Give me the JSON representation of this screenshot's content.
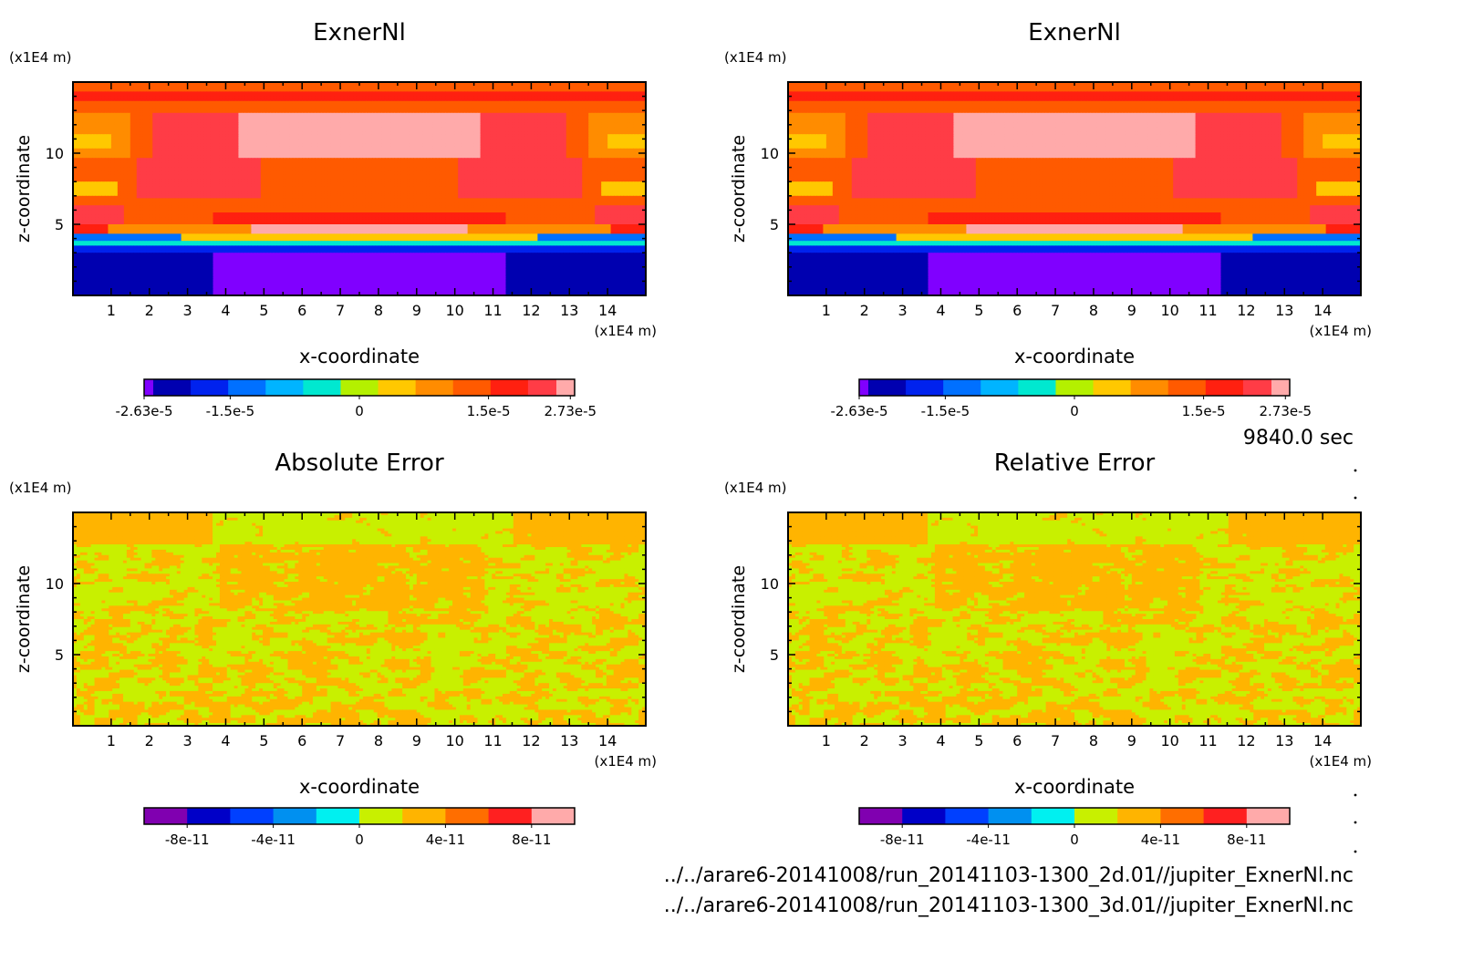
{
  "time_label": "9840.0 sec",
  "files": [
    "../../arare6-20141008/run_20141103-1300_2d.01//jupiter_ExnerNl.nc",
    "../../arare6-20141008/run_20141103-1300_3d.01//jupiter_ExnerNl.nc"
  ],
  "chart_data": [
    {
      "type": "heatmap",
      "title": "ExnerNl",
      "xlabel": "x-coordinate",
      "ylabel": "z-coordinate",
      "x_unit": "(x1E4 m)",
      "y_unit": "(x1E4 m)",
      "xlim": [
        0,
        15
      ],
      "ylim": [
        0,
        15
      ],
      "x_ticks": [
        1,
        2,
        3,
        4,
        5,
        6,
        7,
        8,
        9,
        10,
        11,
        12,
        13,
        14
      ],
      "y_ticks": [
        5,
        10
      ],
      "colorbar": {
        "colors": [
          "#8000ff",
          "#0000b0",
          "#0022ee",
          "#0070ff",
          "#00b4ff",
          "#00e8d0",
          "#b4f000",
          "#ffc800",
          "#ff8c00",
          "#ff5a00",
          "#ff2010",
          "#ff3c46",
          "#ffaaaa"
        ],
        "tick_labels": [
          "-2.63e-5",
          "-1.5e-5",
          "0",
          "1.5e-5",
          "2.73e-5"
        ],
        "vmin": -2.63e-05,
        "vmax": 2.73e-05
      }
    },
    {
      "type": "heatmap",
      "title": "ExnerNl",
      "xlabel": "x-coordinate",
      "ylabel": "z-coordinate",
      "x_unit": "(x1E4 m)",
      "y_unit": "(x1E4 m)",
      "xlim": [
        0,
        15
      ],
      "ylim": [
        0,
        15
      ],
      "x_ticks": [
        1,
        2,
        3,
        4,
        5,
        6,
        7,
        8,
        9,
        10,
        11,
        12,
        13,
        14
      ],
      "y_ticks": [
        5,
        10
      ],
      "colorbar": {
        "colors": [
          "#8000ff",
          "#0000b0",
          "#0022ee",
          "#0070ff",
          "#00b4ff",
          "#00e8d0",
          "#b4f000",
          "#ffc800",
          "#ff8c00",
          "#ff5a00",
          "#ff2010",
          "#ff3c46",
          "#ffaaaa"
        ],
        "tick_labels": [
          "-2.63e-5",
          "-1.5e-5",
          "0",
          "1.5e-5",
          "2.73e-5"
        ],
        "vmin": -2.63e-05,
        "vmax": 2.73e-05
      }
    },
    {
      "type": "heatmap",
      "title": "Absolute Error",
      "xlabel": "x-coordinate",
      "ylabel": "z-coordinate",
      "x_unit": "(x1E4 m)",
      "y_unit": "(x1E4 m)",
      "xlim": [
        0,
        15
      ],
      "ylim": [
        0,
        15
      ],
      "x_ticks": [
        1,
        2,
        3,
        4,
        5,
        6,
        7,
        8,
        9,
        10,
        11,
        12,
        13,
        14
      ],
      "y_ticks": [
        5,
        10
      ],
      "colorbar": {
        "colors": [
          "#8000b0",
          "#0000c8",
          "#0040ff",
          "#0090f0",
          "#00f0f0",
          "#c8f000",
          "#ffb400",
          "#ff6e00",
          "#ff2020",
          "#ffaaaa"
        ],
        "tick_labels": [
          "-8e-11",
          "-4e-11",
          "0",
          "4e-11",
          "8e-11"
        ],
        "vmin": -1e-10,
        "vmax": 1e-10
      }
    },
    {
      "type": "heatmap",
      "title": "Relative Error",
      "xlabel": "x-coordinate",
      "ylabel": "z-coordinate",
      "x_unit": "(x1E4 m)",
      "y_unit": "(x1E4 m)",
      "xlim": [
        0,
        15
      ],
      "ylim": [
        0,
        15
      ],
      "x_ticks": [
        1,
        2,
        3,
        4,
        5,
        6,
        7,
        8,
        9,
        10,
        11,
        12,
        13,
        14
      ],
      "y_ticks": [
        5,
        10
      ],
      "colorbar": {
        "colors": [
          "#8000b0",
          "#0000c8",
          "#0040ff",
          "#0090f0",
          "#00f0f0",
          "#c8f000",
          "#ffb400",
          "#ff6e00",
          "#ff2020",
          "#ffaaaa"
        ],
        "tick_labels": [
          "-8e-11",
          "-4e-11",
          "0",
          "4e-11",
          "8e-11"
        ],
        "vmin": -1e-10,
        "vmax": 1e-10
      }
    }
  ]
}
